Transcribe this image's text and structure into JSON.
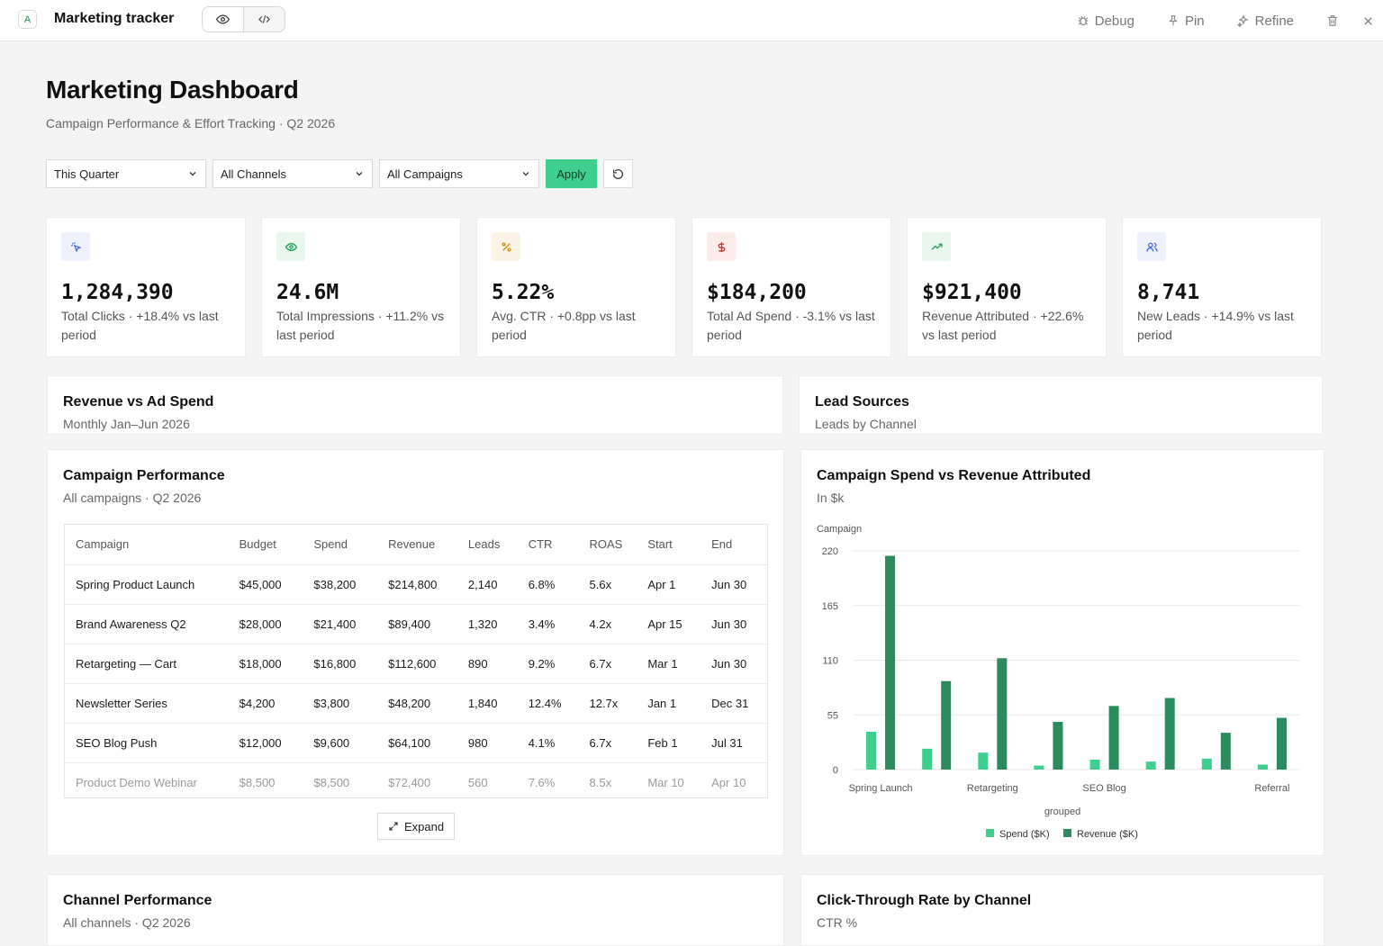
{
  "app": {
    "badge": "A",
    "title": "Marketing tracker",
    "actions": {
      "debug": "Debug",
      "pin": "Pin",
      "refine": "Refine"
    }
  },
  "header": {
    "title": "Marketing Dashboard",
    "subtitle": "Campaign Performance & Effort Tracking · Q2 2026"
  },
  "filters": {
    "period": "This Quarter",
    "channel": "All Channels",
    "campaign": "All Campaigns",
    "apply": "Apply"
  },
  "kpis": [
    {
      "icon": "cursor-click-icon",
      "value": "1,284,390",
      "label": "Total Clicks · +18.4% vs last period",
      "bg": "#eef1fb",
      "fg": "#3b5bdb"
    },
    {
      "icon": "eye-icon",
      "value": "24.6M",
      "label": "Total Impressions · +11.2% vs last period",
      "bg": "#e8f6ee",
      "fg": "#1f9d55"
    },
    {
      "icon": "percent-icon",
      "value": "5.22%",
      "label": "Avg. CTR · +0.8pp vs last period",
      "bg": "#fbf3e6",
      "fg": "#c98a1a"
    },
    {
      "icon": "dollar-icon",
      "value": "$184,200",
      "label": "Total Ad Spend · -3.1% vs last period",
      "bg": "#fbecea",
      "fg": "#c0392b"
    },
    {
      "icon": "trending-up-icon",
      "value": "$921,400",
      "label": "Revenue Attributed · +22.6% vs last period",
      "bg": "#e8f6ee",
      "fg": "#1f9d55"
    },
    {
      "icon": "users-icon",
      "value": "8,741",
      "label": "New Leads · +14.9% vs last period",
      "bg": "#eef1fb",
      "fg": "#3b5bdb"
    }
  ],
  "panels": {
    "revenue_vs_spend": {
      "title": "Revenue vs Ad Spend",
      "subtitle": "Monthly Jan–Jun 2026"
    },
    "lead_sources": {
      "title": "Lead Sources",
      "subtitle": "Leads by Channel"
    },
    "campaign_perf": {
      "title": "Campaign Performance",
      "subtitle": "All campaigns · Q2 2026",
      "expand": "Expand"
    },
    "spend_vs_revenue": {
      "title": "Campaign Spend vs Revenue Attributed",
      "subtitle": "In $k"
    },
    "channel_perf": {
      "title": "Channel Performance",
      "subtitle": "All channels · Q2 2026"
    },
    "ctr_by_channel": {
      "title": "Click-Through Rate by Channel",
      "subtitle": "CTR %"
    }
  },
  "table": {
    "columns": [
      "Campaign",
      "Budget",
      "Spend",
      "Revenue",
      "Leads",
      "CTR",
      "ROAS",
      "Start",
      "End"
    ],
    "rows": [
      [
        "Spring Product Launch",
        "$45,000",
        "$38,200",
        "$214,800",
        "2,140",
        "6.8%",
        "5.6x",
        "Apr 1",
        "Jun 30"
      ],
      [
        "Brand Awareness Q2",
        "$28,000",
        "$21,400",
        "$89,400",
        "1,320",
        "3.4%",
        "4.2x",
        "Apr 15",
        "Jun 30"
      ],
      [
        "Retargeting — Cart",
        "$18,000",
        "$16,800",
        "$112,600",
        "890",
        "9.2%",
        "6.7x",
        "Mar 1",
        "Jun 30"
      ],
      [
        "Newsletter Series",
        "$4,200",
        "$3,800",
        "$48,200",
        "1,840",
        "12.4%",
        "12.7x",
        "Jan 1",
        "Dec 31"
      ],
      [
        "SEO Blog Push",
        "$12,000",
        "$9,600",
        "$64,100",
        "980",
        "4.1%",
        "6.7x",
        "Feb 1",
        "Jul 31"
      ],
      [
        "Product Demo Webinar",
        "$8,500",
        "$8,500",
        "$72,400",
        "560",
        "7.6%",
        "8.5x",
        "Mar 10",
        "Apr 10"
      ]
    ]
  },
  "chart_data": {
    "type": "bar",
    "title": "Campaign Spend vs Revenue Attributed",
    "subtitle": "In $k",
    "ylabel": "Campaign",
    "xlabel": "grouped",
    "ylim": [
      0,
      220
    ],
    "yticks": [
      0,
      55,
      110,
      165,
      220
    ],
    "grid": true,
    "legend_position": "bottom",
    "categories": [
      "Spring Launch",
      "",
      "Retargeting",
      "",
      "SEO Blog",
      "",
      "",
      "Referral"
    ],
    "series": [
      {
        "name": "Spend ($K)",
        "color": "#3ecf8e",
        "values": [
          38,
          21,
          17,
          4,
          10,
          8,
          11,
          5
        ]
      },
      {
        "name": "Revenue ($K)",
        "color": "#2a8c5c",
        "values": [
          215,
          89,
          112,
          48,
          64,
          72,
          37,
          52
        ]
      }
    ]
  }
}
